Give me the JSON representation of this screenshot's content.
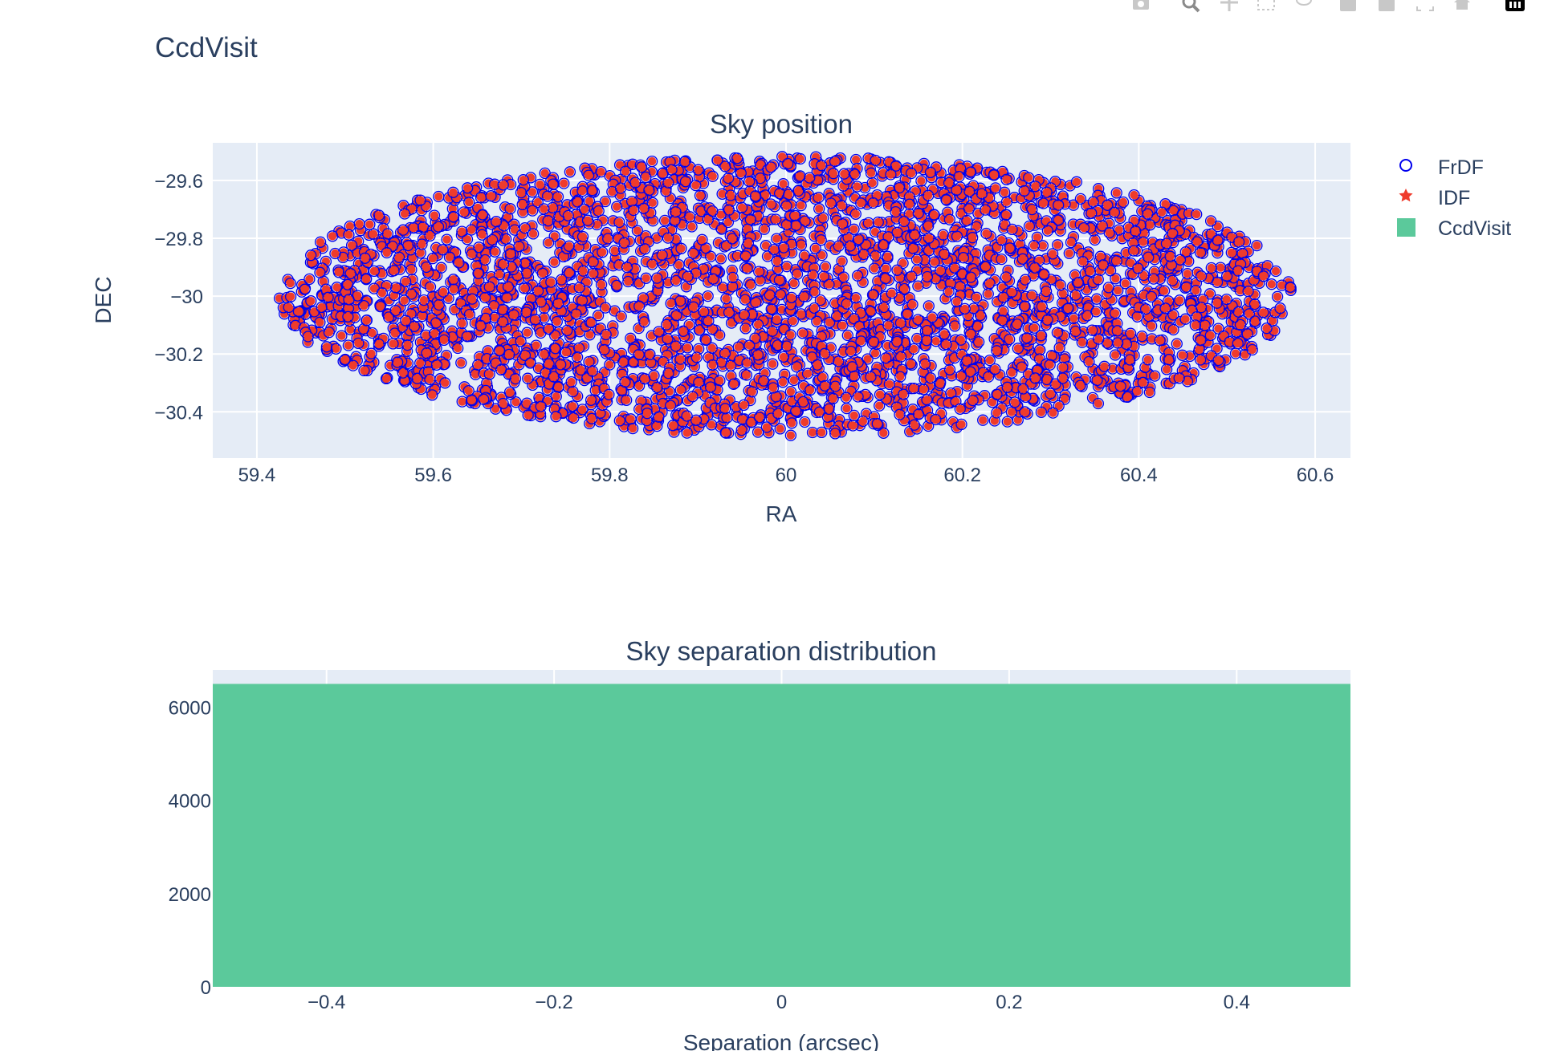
{
  "page_title": "CcdVisit",
  "modebar": {
    "buttons": [
      "camera-icon",
      "zoom-icon",
      "pan-icon",
      "box-select-icon",
      "lasso-icon",
      "zoom-in-icon",
      "zoom-out-icon",
      "autoscale-icon",
      "home-icon",
      "plotly-logo-icon"
    ]
  },
  "chart_data": [
    {
      "type": "scatter",
      "title": "Sky position",
      "xlabel": "RA",
      "ylabel": "DEC",
      "xlim": [
        59.35,
        60.64
      ],
      "ylim": [
        -30.56,
        -29.47
      ],
      "xticks": [
        59.4,
        59.6,
        59.8,
        60,
        60.2,
        60.4,
        60.6
      ],
      "xtick_labels": [
        "59.4",
        "59.6",
        "59.8",
        "60",
        "60.2",
        "60.4",
        "60.6"
      ],
      "yticks": [
        -29.6,
        -29.8,
        -30,
        -30.2,
        -30.4
      ],
      "ytick_labels": [
        "−29.6",
        "−29.8",
        "−30",
        "−30.2",
        "−30.4"
      ],
      "grid": true,
      "footprint": {
        "center_ra": 60.0,
        "center_dec": -30.0,
        "ra_half_width": 0.58,
        "dec_half_height": 0.5
      },
      "series": [
        {
          "name": "FrDF",
          "marker": "circle-open",
          "color": "#0000ee"
        },
        {
          "name": "IDF",
          "marker": "star",
          "color": "#ef3b2c"
        }
      ]
    },
    {
      "type": "bar",
      "title": "Sky separation distribution",
      "xlabel": "Separation (arcsec)",
      "ylabel": "",
      "xlim": [
        -0.5,
        0.5
      ],
      "ylim": [
        0,
        6800
      ],
      "xticks": [
        -0.4,
        -0.2,
        0,
        0.2,
        0.4
      ],
      "xtick_labels": [
        "−0.4",
        "−0.2",
        "0",
        "0.2",
        "0.4"
      ],
      "yticks": [
        0,
        2000,
        4000,
        6000
      ],
      "ytick_labels": [
        "0",
        "2000",
        "4000",
        "6000"
      ],
      "bins": [
        {
          "x0": -0.5,
          "x1": 0.5,
          "count": 6500
        }
      ],
      "series": [
        {
          "name": "CcdVisit",
          "color": "#5bc99b"
        }
      ]
    }
  ],
  "legend": {
    "placement": "top-right",
    "items": [
      {
        "label": "FrDF",
        "symbol": "circle-open",
        "color": "#0000ee"
      },
      {
        "label": "IDF",
        "symbol": "star",
        "color": "#ef3b2c"
      },
      {
        "label": "CcdVisit",
        "symbol": "square",
        "color": "#5bc99b"
      }
    ]
  },
  "colors": {
    "plot_bg": "#e5ecf6",
    "grid": "#ffffff",
    "text": "#2a3f5f"
  }
}
